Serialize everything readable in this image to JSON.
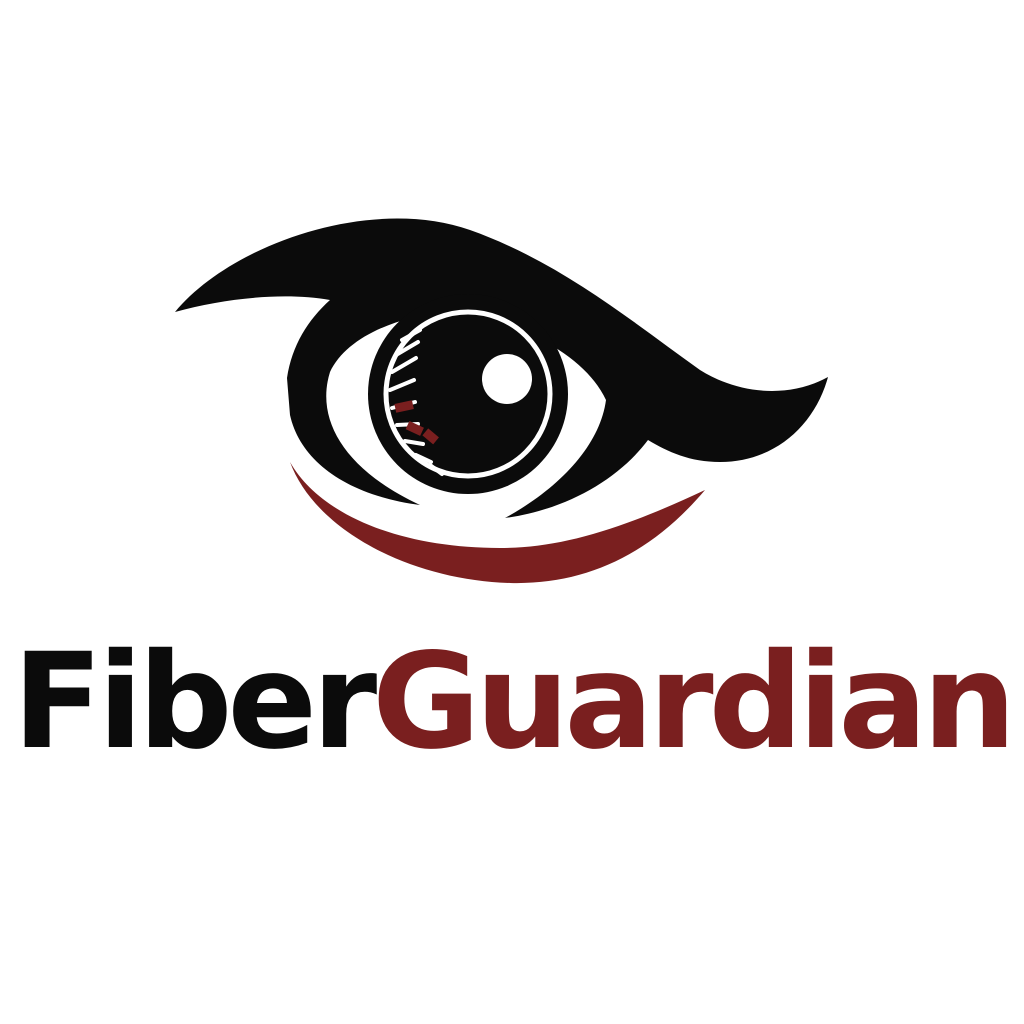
{
  "logo": {
    "brand_name_part1": "Fiber",
    "brand_name_part2": "Guardian",
    "icon": "eye-icon",
    "colors": {
      "primary_dark": "#0b0b0b",
      "accent_red": "#7a1f1f",
      "background": "#ffffff"
    }
  }
}
